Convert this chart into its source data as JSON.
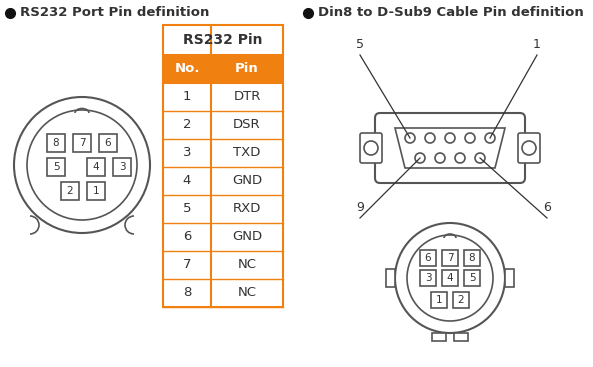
{
  "title_left": "RS232 Port Pin definition",
  "title_right": "Din8 to D-Sub9 Cable Pin definition",
  "table_title": "RS232 Pin",
  "table_header": [
    "No.",
    "Pin"
  ],
  "table_rows": [
    [
      "1",
      "DTR"
    ],
    [
      "2",
      "DSR"
    ],
    [
      "3",
      "TXD"
    ],
    [
      "4",
      "GND"
    ],
    [
      "5",
      "RXD"
    ],
    [
      "6",
      "GND"
    ],
    [
      "7",
      "NC"
    ],
    [
      "8",
      "NC"
    ]
  ],
  "orange": "#F08010",
  "orange_border": "#F08010",
  "dark_gray": "#333333",
  "connector_gray": "#555555",
  "bg": "#ffffff",
  "bullet_color": "#111111",
  "pin_positions_left": [
    [
      "8",
      -26,
      -22
    ],
    [
      "7",
      0,
      -22
    ],
    [
      "6",
      26,
      -22
    ],
    [
      "5",
      -26,
      2
    ],
    [
      "4",
      14,
      2
    ],
    [
      "3",
      40,
      2
    ],
    [
      "2",
      -12,
      26
    ],
    [
      "1",
      14,
      26
    ]
  ],
  "pin_positions_right": [
    [
      "6",
      -22,
      -20
    ],
    [
      "7",
      0,
      -20
    ],
    [
      "8",
      22,
      -20
    ],
    [
      "3",
      -22,
      0
    ],
    [
      "4",
      0,
      0
    ],
    [
      "5",
      22,
      0
    ],
    [
      "1",
      -11,
      22
    ],
    [
      "2",
      11,
      22
    ]
  ],
  "dsub_labels": [
    [
      "5",
      353,
      312,
      406,
      265
    ],
    [
      "1",
      535,
      312,
      494,
      265
    ],
    [
      "9",
      353,
      222,
      406,
      248
    ],
    [
      "6",
      548,
      222,
      494,
      248
    ]
  ]
}
